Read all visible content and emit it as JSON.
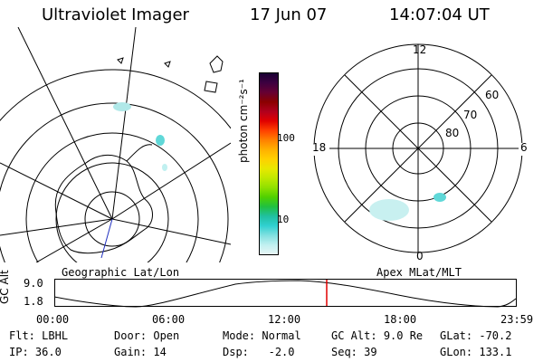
{
  "header": {
    "title": "Ultraviolet Imager",
    "date": "17 Jun 07",
    "time": "14:07:04 UT"
  },
  "colorbar": {
    "unit_label": "photon cm⁻²s⁻¹",
    "ticks": [
      "100",
      "10"
    ],
    "colors": [
      "#1a0033",
      "#3d0040",
      "#660033",
      "#8b0000",
      "#b0001e",
      "#e00000",
      "#ff4000",
      "#ff8000",
      "#ffb000",
      "#ffd000",
      "#e8e800",
      "#c0e800",
      "#90e000",
      "#50d000",
      "#20c040",
      "#20c0a0",
      "#30d0d0",
      "#80e0e0",
      "#c0f0f0",
      "#e8f6f6"
    ]
  },
  "left_panel": {
    "label": "Geographic Lat/Lon"
  },
  "right_panel": {
    "label": "Apex MLat/MLT",
    "mlt_labels": {
      "top": "12",
      "bottom": "0",
      "left": "18",
      "right": "6"
    },
    "lat_labels": [
      "60",
      "70",
      "80"
    ]
  },
  "timeline": {
    "axis_label": "GC Alt",
    "y_ticks": [
      "9.0",
      "1.8"
    ],
    "x_ticks": [
      "00:00",
      "06:00",
      "12:00",
      "18:00",
      "23:59"
    ],
    "marker_color": "#e00000"
  },
  "info": {
    "row1": [
      {
        "label": "Flt:",
        "value": "LBHL"
      },
      {
        "label": "Door:",
        "value": "Open"
      },
      {
        "label": "Mode:",
        "value": "Normal"
      },
      {
        "label": "GC Alt:",
        "value": "9.0 Re"
      },
      {
        "label": "GLat:",
        "value": "-70.2"
      }
    ],
    "row2": [
      {
        "label": "IP:",
        "value": "36.0"
      },
      {
        "label": "Gain:",
        "value": "14"
      },
      {
        "label": "Dsp:",
        "value": "  -2.0"
      },
      {
        "label": "Seq:",
        "value": "39"
      },
      {
        "label": "GLon:",
        "value": "133.1"
      }
    ]
  }
}
